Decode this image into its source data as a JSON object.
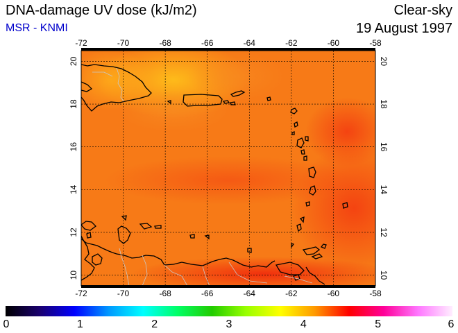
{
  "header": {
    "title": "DNA-damage UV dose (kJ/m2)",
    "credit": "MSR - KNMI",
    "condition": "Clear-sky",
    "date": "19 August 1997"
  },
  "map": {
    "lon_ticks": [
      "-72",
      "-70",
      "-68",
      "-66",
      "-64",
      "-62",
      "-60",
      "-58"
    ],
    "lat_ticks": [
      "20",
      "18",
      "16",
      "14",
      "12",
      "10"
    ],
    "lon_range": [
      -72,
      -58
    ],
    "lat_range": [
      9.5,
      20.5
    ],
    "base_color": "#f77a17",
    "land_outline_color": "#000000",
    "border_color": "#bbbbbb"
  },
  "colorbar": {
    "labels": [
      "0",
      "1",
      "2",
      "3",
      "4",
      "5",
      "6"
    ],
    "range": [
      0,
      6
    ],
    "stops": [
      "#000000",
      "#1a0070",
      "#0000ff",
      "#0099ff",
      "#00ffff",
      "#00ff66",
      "#22cc00",
      "#99ff00",
      "#ffff00",
      "#ff9900",
      "#ff0000",
      "#ff0099",
      "#ff77ff",
      "#ffeeff"
    ]
  }
}
